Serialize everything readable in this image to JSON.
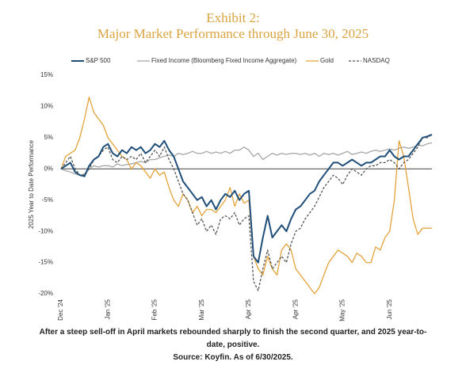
{
  "chart_data": {
    "type": "line",
    "title": "Exhibit 2:",
    "subtitle": "Major Market Performance through June 30, 2025",
    "y_label": "2025 Year to Date Performance",
    "caption": "After a steep sell-off in April markets rebounded sharply to finish the second quarter, and 2025 year-to-date, positive.",
    "source": "Source: Koyfin. As of 6/30/2025.",
    "categories": [
      "Dec '24",
      null,
      null,
      null,
      null,
      null,
      null,
      null,
      null,
      null,
      "Jan '25",
      null,
      null,
      null,
      null,
      null,
      null,
      null,
      null,
      null,
      "Feb '25",
      null,
      null,
      null,
      null,
      null,
      null,
      null,
      null,
      null,
      "Mar '25",
      null,
      null,
      null,
      null,
      null,
      null,
      null,
      null,
      null,
      "Apr '25",
      null,
      null,
      null,
      null,
      null,
      null,
      null,
      null,
      null,
      "Apr '25",
      null,
      null,
      null,
      null,
      null,
      null,
      null,
      null,
      null,
      "May '25",
      null,
      null,
      null,
      null,
      null,
      null,
      null,
      null,
      null,
      "Jun '25",
      null,
      null,
      null,
      null,
      null,
      null,
      null,
      null,
      null
    ],
    "ylim": [
      -20,
      15
    ],
    "yticks": [
      {
        "value": 15,
        "label": "15%"
      },
      {
        "value": 10,
        "label": "10%"
      },
      {
        "value": 5,
        "label": "5%"
      },
      {
        "value": 0,
        "label": "0%"
      },
      {
        "value": -5,
        "label": "-5%"
      },
      {
        "value": -10,
        "label": "-10%"
      },
      {
        "value": -15,
        "label": "-15%"
      },
      {
        "value": -20,
        "label": "-20%"
      }
    ],
    "grid": false,
    "series": [
      {
        "name": "S&P 500",
        "color": "#1f4e79",
        "style": "solid",
        "width": 2,
        "values": [
          0,
          0.5,
          1,
          -0.5,
          -1,
          -1.2,
          0.5,
          1.5,
          2,
          3.5,
          4,
          2.5,
          2,
          3,
          2.5,
          3.5,
          3,
          3.5,
          2.5,
          3,
          4,
          3.5,
          4.5,
          3,
          2,
          0,
          -2,
          -3,
          -4,
          -5,
          -4.5,
          -6,
          -5,
          -6.5,
          -5,
          -4,
          -4.5,
          -3.5,
          -5,
          -4,
          -3.5,
          -14,
          -15,
          -11,
          -7.5,
          -11,
          -10,
          -9,
          -10,
          -8,
          -6.5,
          -6,
          -5,
          -4,
          -3.5,
          -2,
          -1,
          0,
          1,
          1,
          0.5,
          1,
          1.5,
          1,
          0.5,
          1,
          1,
          1.5,
          2,
          2,
          3,
          2,
          1.5,
          2,
          2,
          3,
          4,
          5,
          5.2,
          5.5
        ]
      },
      {
        "name": "Fixed Income (Bloomberg Fixed Income Aggregate)",
        "color": "#a6a6a6",
        "style": "solid",
        "width": 1.3,
        "values": [
          0,
          -0.3,
          -0.5,
          -0.8,
          -1,
          -0.8,
          0,
          0.5,
          0.3,
          0.5,
          0.5,
          0.3,
          0.8,
          0.5,
          0.7,
          0.8,
          1,
          1.2,
          1,
          1.5,
          1.5,
          1.8,
          2,
          2.2,
          2,
          2.5,
          2.3,
          2.5,
          2.8,
          2.5,
          2.5,
          2.8,
          2.5,
          2.7,
          2.5,
          2.8,
          2.5,
          3,
          3,
          3.5,
          3,
          2,
          2.5,
          1.5,
          2,
          2.5,
          2.2,
          2.5,
          2.3,
          2.5,
          2.5,
          2.3,
          2.5,
          2.2,
          2.5,
          2,
          2.5,
          2.3,
          2.5,
          2.2,
          2.5,
          2.8,
          2.3,
          2.5,
          2.7,
          2.5,
          2.8,
          3,
          2.8,
          3,
          3.2,
          3,
          3.3,
          3.5,
          3.3,
          3.5,
          3.8,
          3.7,
          4,
          4.2
        ]
      },
      {
        "name": "Gold",
        "color": "#e3a33b",
        "style": "solid",
        "width": 1.3,
        "values": [
          0,
          2,
          2.5,
          3,
          5,
          8,
          11.5,
          9,
          8,
          7,
          5,
          4,
          3,
          2,
          1.5,
          0,
          1,
          0.5,
          -0.5,
          -1.5,
          0,
          -1,
          -0.5,
          -3,
          -5,
          -6,
          -4,
          -5,
          -7,
          -6,
          -7.5,
          -6.5,
          -6.5,
          -7,
          -6,
          -5,
          -3,
          -6,
          -4,
          -5.5,
          -5,
          -14,
          -16,
          -17,
          -14,
          -16,
          -17,
          -13,
          -12,
          -13,
          -16,
          -17,
          -18,
          -19,
          -20,
          -19,
          -17,
          -15,
          -14,
          -13,
          -13.5,
          -14,
          -15,
          -13.5,
          -14,
          -15,
          -15,
          -12.5,
          -13,
          -11,
          -10,
          -5,
          4.5,
          2,
          -3,
          -8,
          -10.5,
          -9.5,
          -9.5,
          -9.5
        ]
      },
      {
        "name": "NASDAQ",
        "color": "#555555",
        "style": "dashed",
        "width": 1.3,
        "values": [
          0,
          1,
          2,
          0,
          -1,
          -1,
          0,
          1.5,
          2,
          3,
          3.5,
          1.5,
          1,
          2,
          1.5,
          2,
          1.5,
          2.5,
          1,
          2,
          3,
          2,
          3.5,
          1.5,
          0,
          -2,
          -4,
          -5,
          -7,
          -9,
          -8,
          -10,
          -9,
          -10.5,
          -8,
          -7.5,
          -8,
          -7,
          -9,
          -8,
          -7.5,
          -18,
          -19.5,
          -16,
          -13,
          -16,
          -15,
          -14,
          -15,
          -12,
          -10,
          -9.5,
          -8,
          -7,
          -6,
          -4.5,
          -3,
          -2,
          -1,
          -1.5,
          -2.5,
          -1,
          0,
          -0.5,
          -1,
          0,
          0.5,
          0.5,
          1,
          1,
          1.5,
          1,
          0,
          1,
          1.5,
          2.5,
          3.5,
          5,
          5,
          5.5
        ]
      }
    ]
  }
}
